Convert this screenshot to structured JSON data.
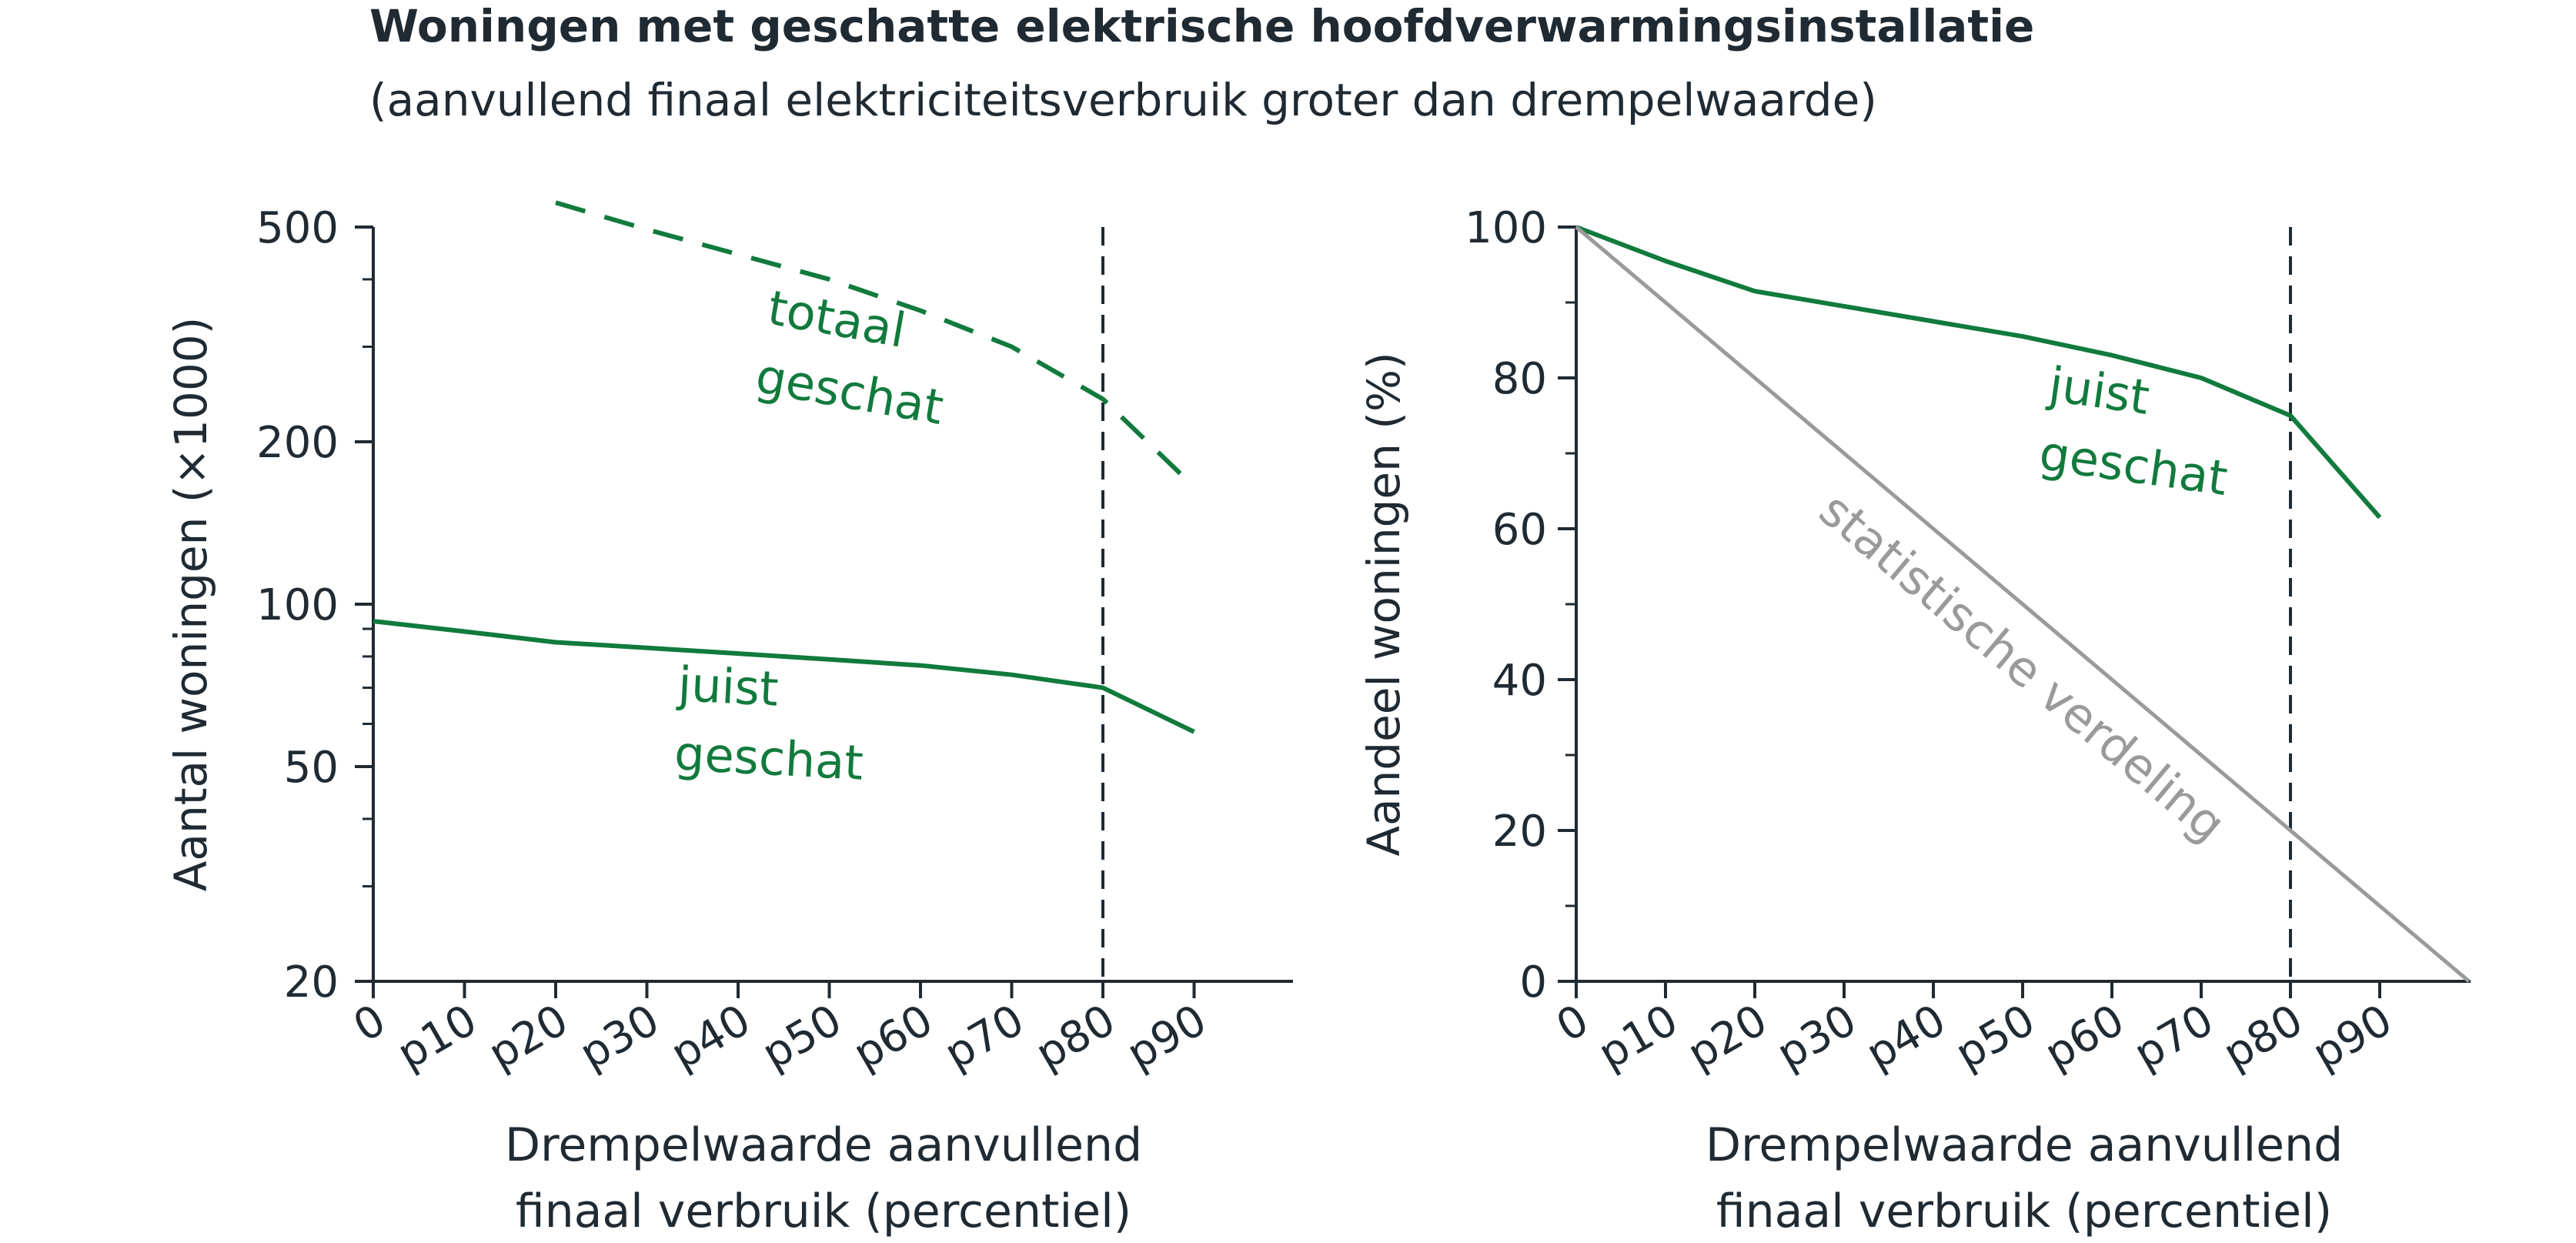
{
  "title": "Woningen met geschatte elektrische hoofdverwarmingsinstallatie",
  "subtitle": "(aanvullend finaal elektriciteitsverbruik groter dan drempelwaarde)",
  "colors": {
    "green": "#117a3d",
    "gray": "#9a9a9a",
    "axis": "#1f2a33"
  },
  "chart_data": [
    {
      "type": "line",
      "xlabel": [
        "Drempelwaarde aanvullend",
        "finaal verbruik (percentiel)"
      ],
      "ylabel": "Aantal woningen (×1000)",
      "y_scale": "log",
      "ylim": [
        20,
        500
      ],
      "y_ticks": [
        20,
        50,
        100,
        200,
        500
      ],
      "x_ticks": [
        "0",
        "p10",
        "p20",
        "p30",
        "p40",
        "p50",
        "p60",
        "p70",
        "p80",
        "p90"
      ],
      "xlim": [
        0,
        100
      ],
      "vertical_marker": 80,
      "series": [
        {
          "name": "totaal geschat",
          "style": "dashed",
          "label_lines": [
            "totaal",
            "geschat"
          ],
          "x": [
            20,
            30,
            40,
            50,
            60,
            70,
            80,
            90
          ],
          "values": [
            555,
            495,
            445,
            400,
            350,
            300,
            240,
            165
          ]
        },
        {
          "name": "juist geschat",
          "style": "solid",
          "label_lines": [
            "juist",
            "geschat"
          ],
          "x": [
            0,
            10,
            20,
            30,
            40,
            50,
            60,
            70,
            80,
            90
          ],
          "values": [
            93,
            89,
            85,
            83,
            81,
            79,
            77,
            74,
            70,
            58
          ]
        }
      ]
    },
    {
      "type": "line",
      "xlabel": [
        "Drempelwaarde aanvullend",
        "finaal verbruik (percentiel)"
      ],
      "ylabel": "Aandeel woningen (%)",
      "ylim": [
        0,
        100
      ],
      "y_ticks": [
        0,
        20,
        40,
        60,
        80,
        100
      ],
      "x_ticks": [
        "0",
        "p10",
        "p20",
        "p30",
        "p40",
        "p50",
        "p60",
        "p70",
        "p80",
        "p90"
      ],
      "xlim": [
        0,
        100
      ],
      "vertical_marker": 80,
      "series": [
        {
          "name": "juist geschat",
          "style": "solid",
          "label_lines": [
            "juist",
            "geschat"
          ],
          "x": [
            0,
            10,
            20,
            30,
            40,
            50,
            60,
            70,
            80,
            90
          ],
          "values": [
            100,
            95.5,
            91.5,
            89.5,
            87.5,
            85.5,
            83,
            80,
            75,
            61.5
          ]
        },
        {
          "name": "statistische verdeling",
          "style": "gray",
          "label_lines": [
            "statistische verdeling"
          ],
          "x": [
            0,
            100
          ],
          "values": [
            100,
            0
          ]
        }
      ]
    }
  ]
}
